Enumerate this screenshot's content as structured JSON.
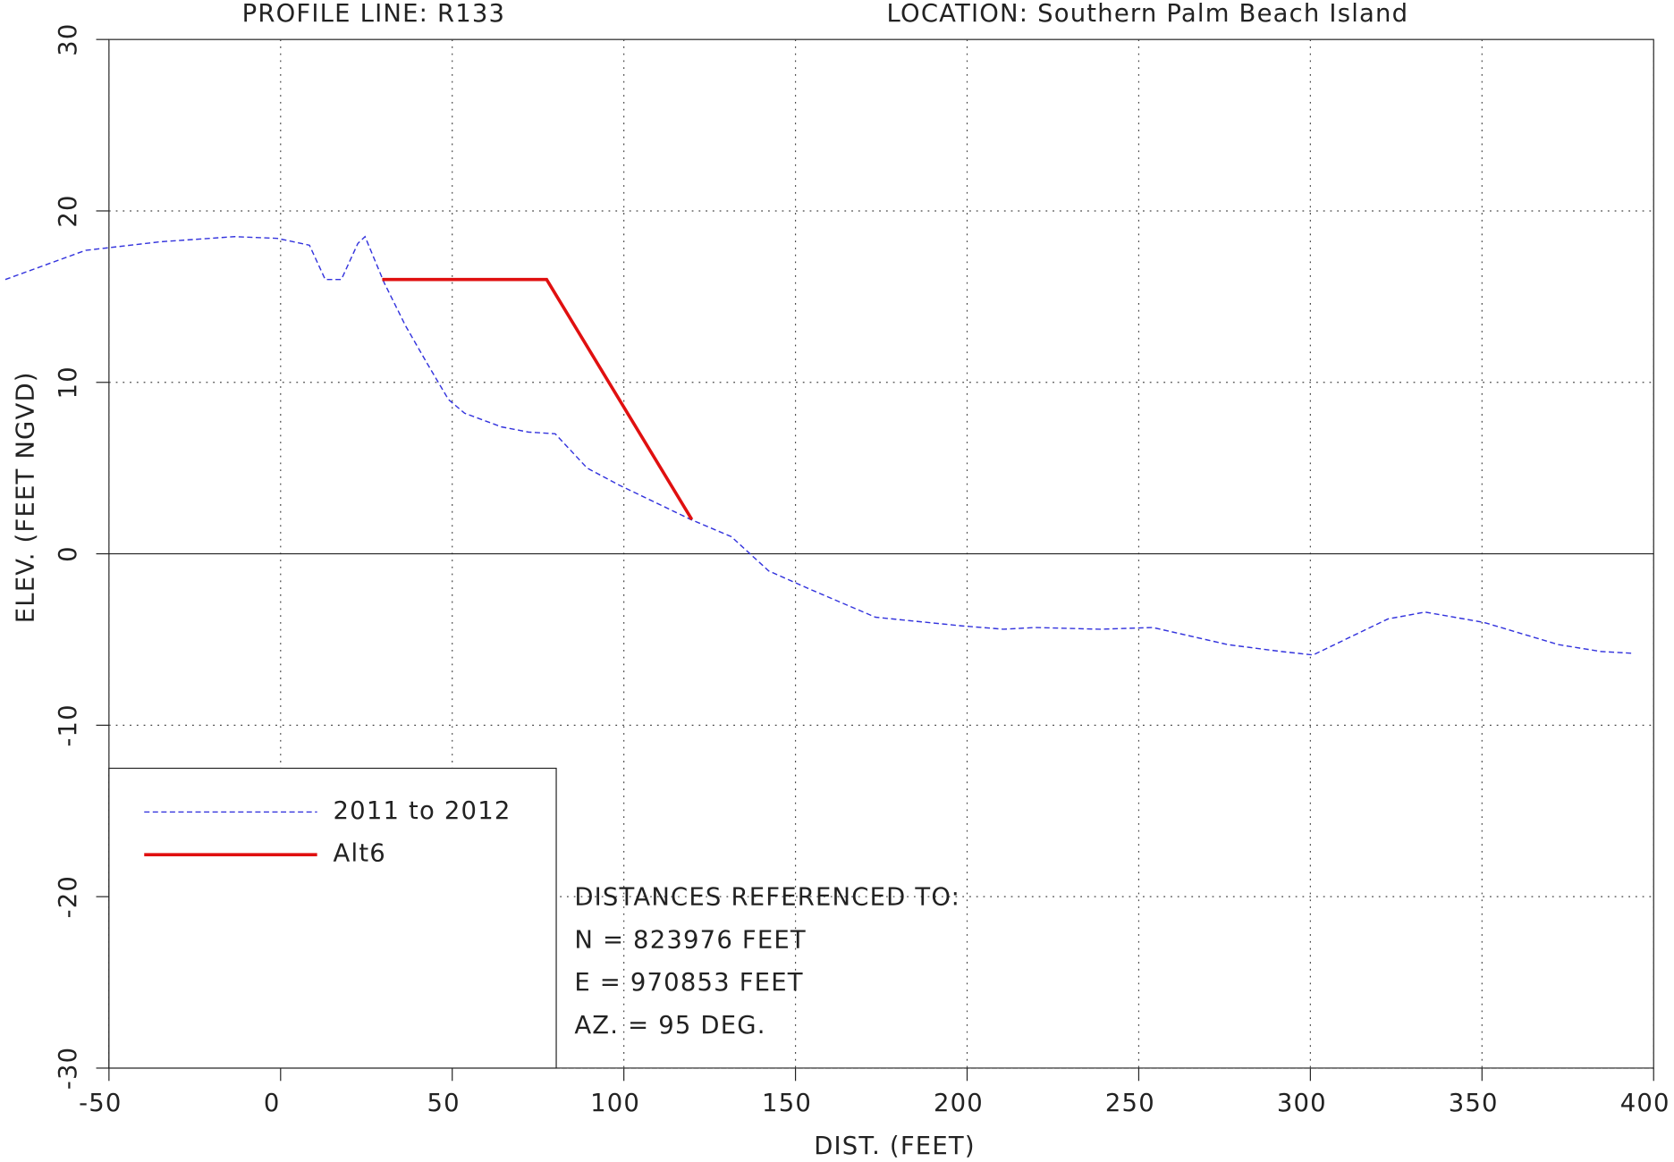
{
  "chart_data": {
    "type": "line",
    "title": "PROFILE LINE: R133",
    "subtitle": "LOCATION: Southern Palm Beach Island",
    "xlabel": "DIST. (FEET)",
    "ylabel": "ELEV. (FEET NGVD)",
    "xlim": [
      -50,
      400
    ],
    "ylim": [
      -30,
      30
    ],
    "xticks": [
      -50,
      0,
      50,
      100,
      150,
      200,
      250,
      300,
      350,
      400
    ],
    "yticks": [
      -30,
      -20,
      -10,
      0,
      10,
      20,
      30
    ],
    "grid": true,
    "legend": "lower left",
    "series": [
      {
        "name": "2011 to 2012",
        "color": "#3333dd",
        "style": "dashed",
        "x": [
          -80.2,
          -56.8,
          -35,
          -13.4,
          -1,
          8.4,
          13,
          17.7,
          22.5,
          24.6,
          30.2,
          36.4,
          42.7,
          48.9,
          53.6,
          64.4,
          72.2,
          80,
          89.3,
          98.7,
          119.5,
          131.3,
          142.2,
          154.6,
          173.3,
          198.2,
          210.6,
          219.9,
          238.6,
          254.1,
          276,
          291.5,
          300.8,
          322.6,
          333.4,
          350.5,
          372.3,
          384.7,
          393.5
        ],
        "values": [
          16.0,
          17.7,
          18.2,
          18.5,
          18.4,
          18.0,
          16.0,
          16.0,
          18.1,
          18.5,
          15.8,
          13.3,
          11.1,
          9.0,
          8.2,
          7.4,
          7.1,
          7.0,
          5.0,
          4.0,
          2.0,
          1.0,
          -1.0,
          -2.1,
          -3.7,
          -4.2,
          -4.4,
          -4.3,
          -4.4,
          -4.3,
          -5.3,
          -5.7,
          -5.9,
          -3.8,
          -3.4,
          -4.0,
          -5.3,
          -5.7,
          -5.8
        ]
      },
      {
        "name": "Alt6",
        "color": "#e01010",
        "style": "solid",
        "x": [
          29.6,
          77.5,
          119.8
        ],
        "values": [
          16.0,
          16.0,
          2.0
        ]
      }
    ],
    "annotations": [
      "DISTANCES REFERENCED TO:",
      "N = 823976 FEET",
      "E = 970853 FEET",
      "AZ. = 95 DEG."
    ]
  }
}
